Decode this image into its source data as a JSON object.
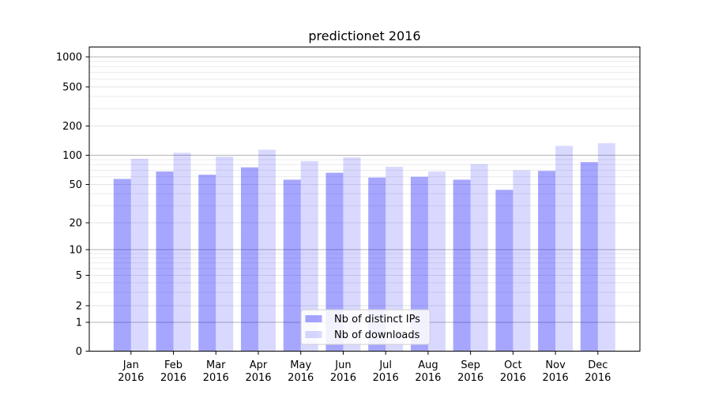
{
  "figure": {
    "title": "predictionet 2016"
  },
  "chart_data": {
    "type": "bar",
    "title": "predictionet 2016",
    "categories": [
      "Jan",
      "Feb",
      "Mar",
      "Apr",
      "May",
      "Jun",
      "Jul",
      "Aug",
      "Sep",
      "Oct",
      "Nov",
      "Dec"
    ],
    "category_year": "2016",
    "series": [
      {
        "name": "Nb of distinct IPs",
        "color": "rgba(0,0,255,0.35)",
        "approx_hex": "#a6a6fa",
        "values": [
          57,
          68,
          63,
          75,
          56,
          66,
          59,
          60,
          56,
          44,
          69,
          85
        ]
      },
      {
        "name": "Nb of downloads",
        "color": "rgba(0,0,255,0.15)",
        "approx_hex": "#d9d9fa",
        "values": [
          92,
          106,
          97,
          114,
          87,
          95,
          76,
          68,
          81,
          70,
          125,
          133
        ]
      }
    ],
    "xlabel": "",
    "ylabel": "",
    "yscale": "symlog",
    "yticks": [
      0,
      1,
      2,
      5,
      10,
      20,
      50,
      100,
      200,
      500,
      1000
    ],
    "ylim": [
      0,
      1200
    ],
    "grid": "both",
    "legend_position": "lower center"
  },
  "colors": {
    "background": "#ffffff",
    "axis": "#000000",
    "major_grid": "#b4b4b4",
    "minor_grid": "#ebebeb",
    "light_tick_grid": "#e3e3e3",
    "legend_border": "#cccccc",
    "legend_bg": "rgba(255,255,255,0.85)"
  }
}
